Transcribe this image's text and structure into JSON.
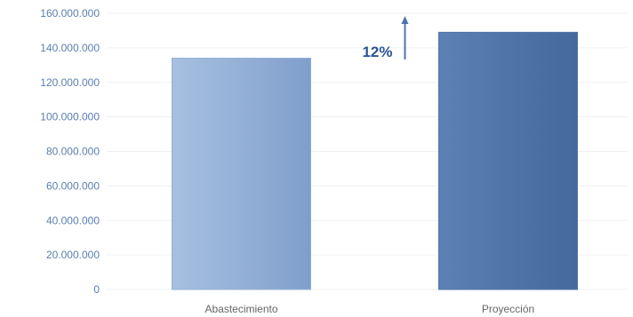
{
  "chart_data": {
    "type": "bar",
    "categories": [
      "Abastecimiento",
      "Proyección"
    ],
    "values": [
      134000000,
      149000000
    ],
    "ylim": [
      0,
      160000000
    ],
    "yticks": [
      0,
      20000000,
      40000000,
      60000000,
      80000000,
      100000000,
      120000000,
      140000000,
      160000000
    ],
    "ytick_labels": [
      "0",
      "20.000.000",
      "40.000.000",
      "60.000.000",
      "80.000.000",
      "100.000.000",
      "120.000.000",
      "140.000.000",
      "160.000.000"
    ],
    "grid": true,
    "legend": "none",
    "colors": [
      "#93b0d6",
      "#4f74a8"
    ],
    "annotation": {
      "text": "12%",
      "arrow": "up",
      "target_category": "Proyección"
    }
  }
}
